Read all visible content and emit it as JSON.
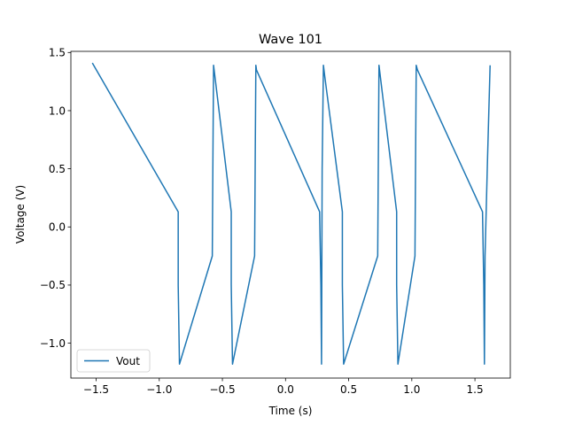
{
  "chart_data": {
    "type": "line",
    "title": "Wave 101",
    "xlabel": "Time (s)",
    "ylabel": "Voltage (V)",
    "xlim": [
      -1.7,
      1.78
    ],
    "ylim": [
      -1.3,
      1.51
    ],
    "xticks": [
      -1.5,
      -1.0,
      -0.5,
      0.0,
      0.5,
      1.0,
      1.5
    ],
    "xtick_labels": [
      "−1.5",
      "−1.0",
      "−0.5",
      "0.0",
      "0.5",
      "1.0",
      "1.5"
    ],
    "yticks": [
      -1.0,
      -0.5,
      0.0,
      0.5,
      1.0,
      1.5
    ],
    "ytick_labels": [
      "−1.0",
      "−0.5",
      "0.0",
      "0.5",
      "1.0",
      "1.5"
    ],
    "grid": false,
    "legend_position": "lower-left",
    "series": [
      {
        "name": "Vout",
        "color": "#1f77b4",
        "x": [
          -1.53,
          -0.85,
          -0.85,
          -0.84,
          -0.58,
          -0.575,
          -0.57,
          -0.56,
          -0.43,
          -0.43,
          -0.42,
          -0.245,
          -0.24,
          -0.235,
          -0.23,
          0.27,
          0.28,
          0.285,
          0.29,
          0.3,
          0.31,
          0.45,
          0.45,
          0.46,
          0.73,
          0.735,
          0.74,
          0.75,
          0.88,
          0.88,
          0.89,
          1.025,
          1.03,
          1.035,
          1.045,
          1.56,
          1.57,
          1.575,
          1.58,
          1.6,
          1.62
        ],
        "y": [
          1.41,
          0.13,
          -0.5,
          -1.18,
          -0.25,
          0.6,
          1.39,
          1.3,
          0.13,
          -0.5,
          -1.18,
          -0.25,
          0.6,
          1.39,
          1.35,
          0.13,
          -0.5,
          -1.18,
          0.5,
          1.39,
          1.3,
          0.13,
          -0.5,
          -1.18,
          -0.25,
          0.6,
          1.39,
          1.3,
          0.13,
          -0.5,
          -1.18,
          -0.25,
          0.6,
          1.39,
          1.35,
          0.13,
          -0.5,
          -1.18,
          -0.25,
          0.6,
          1.39
        ]
      }
    ]
  }
}
